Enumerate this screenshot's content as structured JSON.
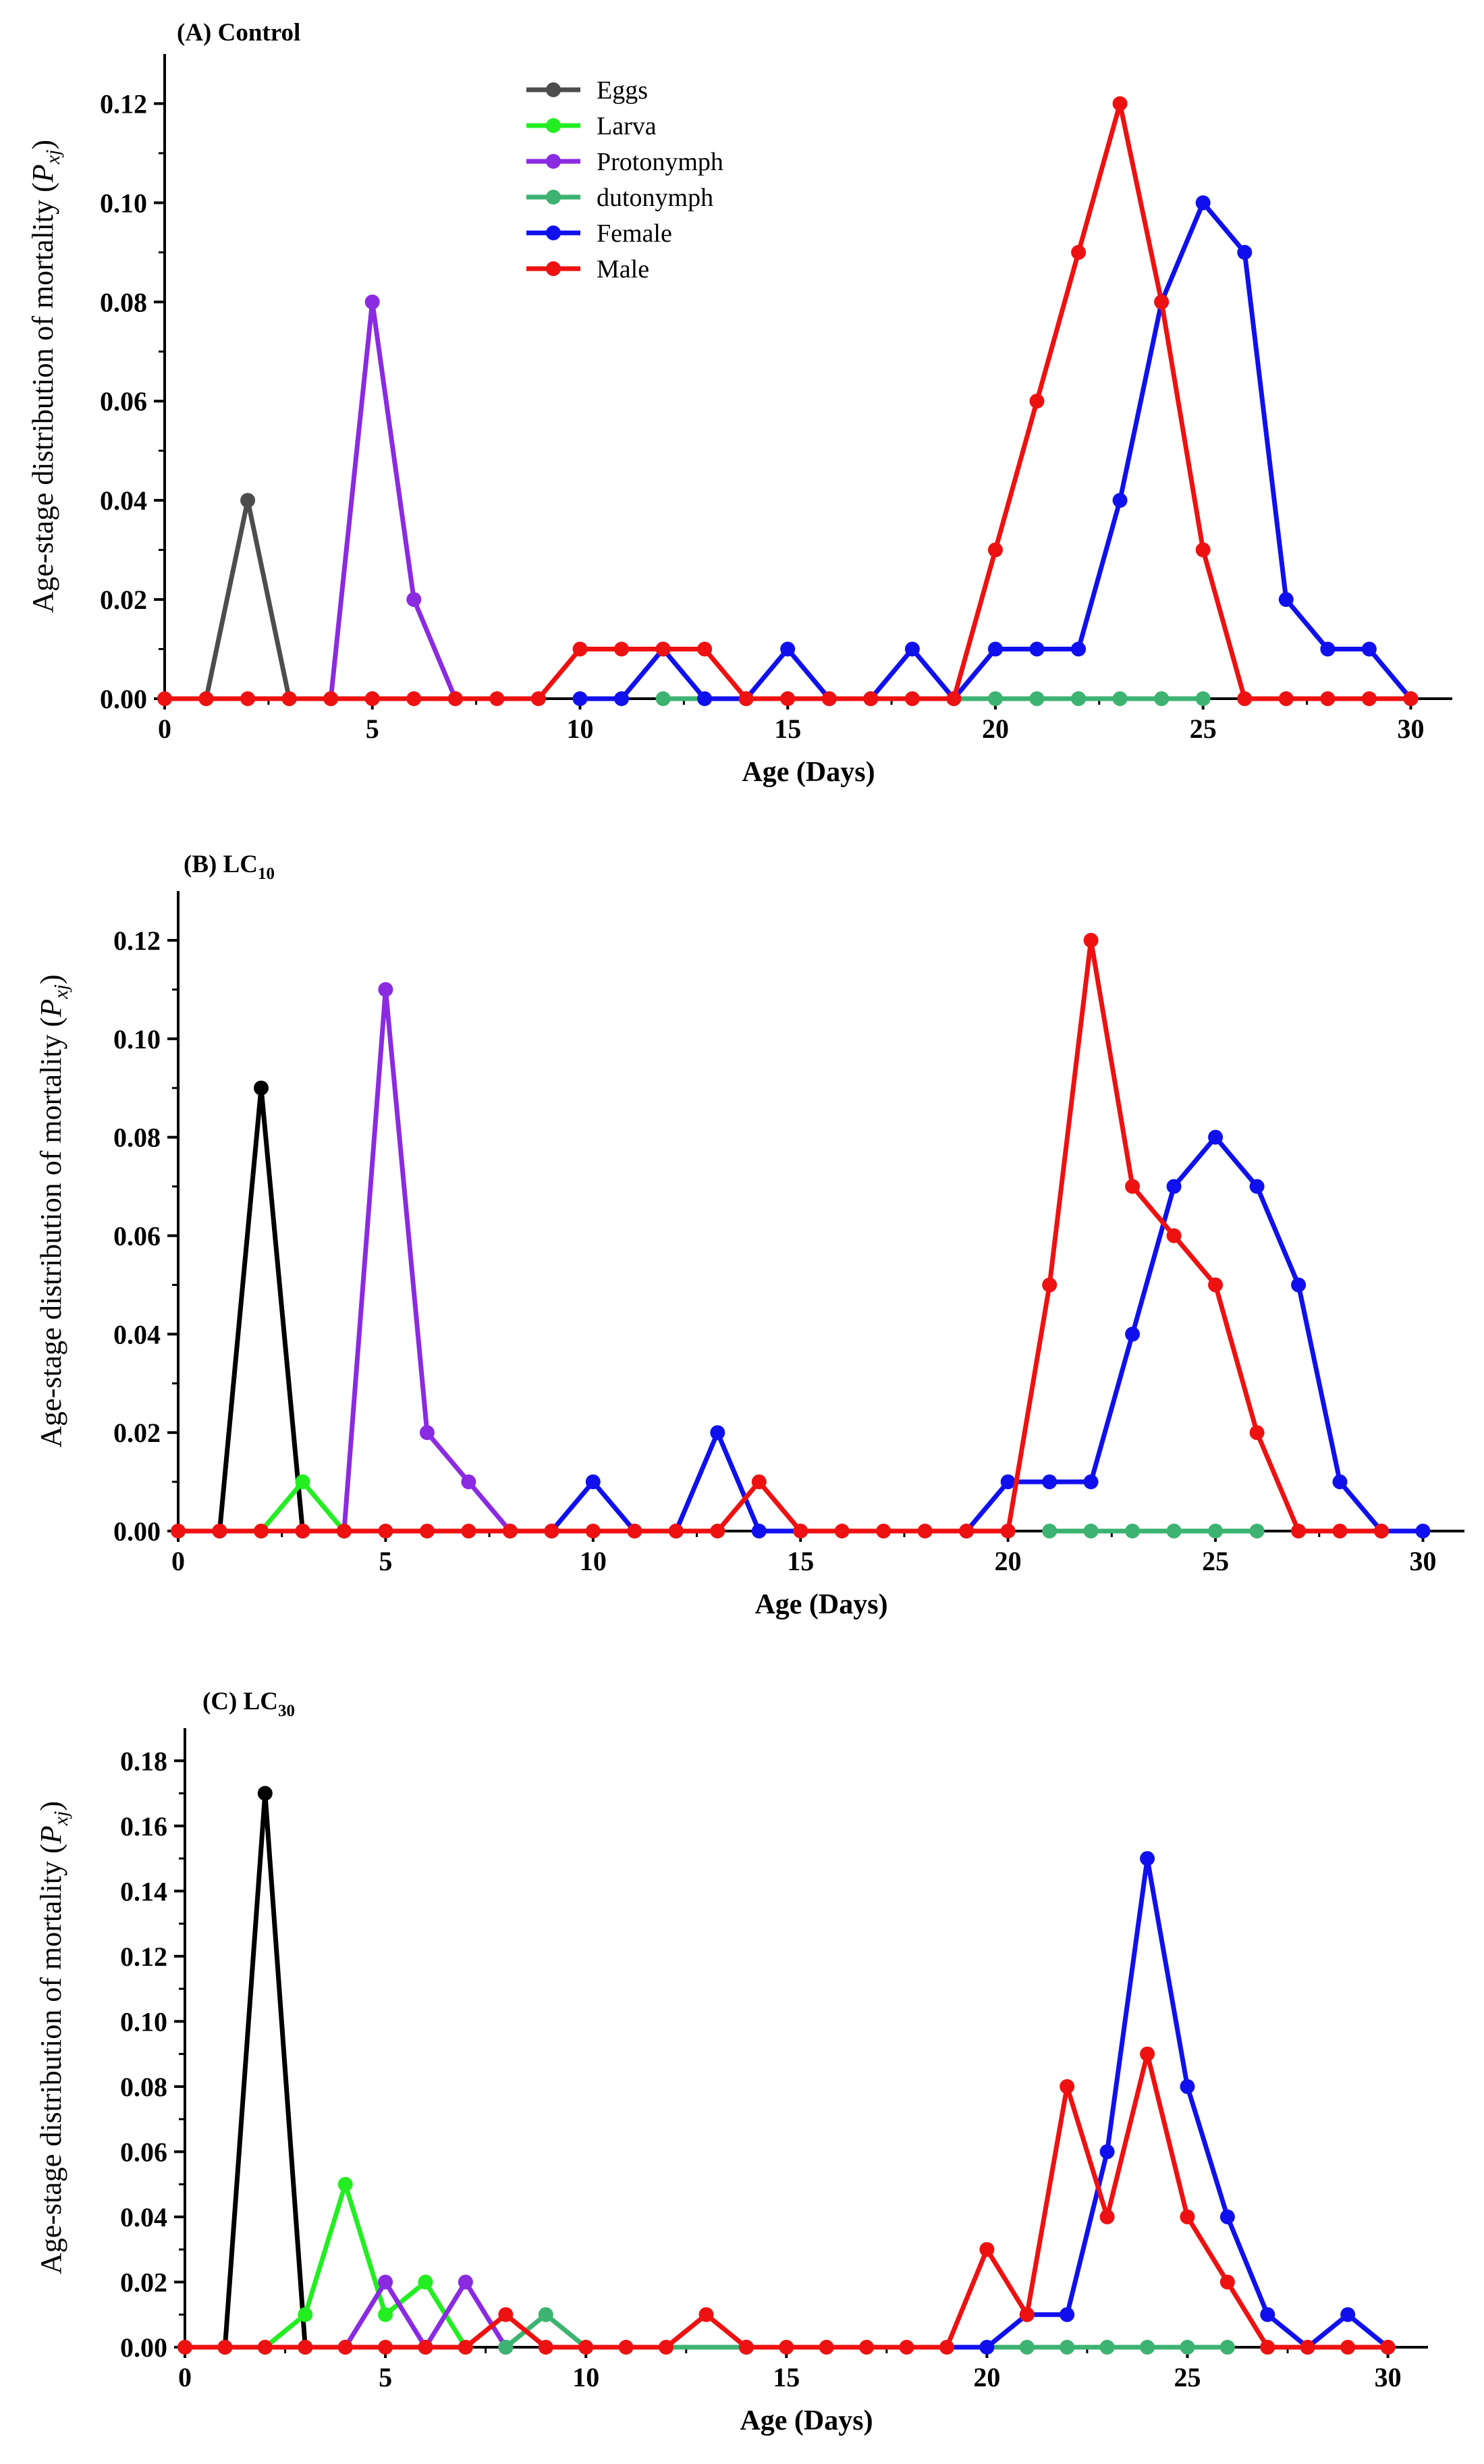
{
  "chart_data": [
    {
      "type": "line",
      "title": "(A) Control",
      "title_main": "(A) Control",
      "title_sub": "",
      "xlabel": "Age (Days)",
      "ylabel_main": "Age-stage distribution of mortality (",
      "ylabel_var": "P",
      "ylabel_subscript": "xj",
      "ylabel_end": ")",
      "xlim": [
        0,
        31
      ],
      "ylim": [
        0,
        0.13
      ],
      "xticks": [
        0,
        5,
        10,
        15,
        20,
        25,
        30
      ],
      "yticks": [
        0,
        0.02,
        0.04,
        0.06,
        0.08,
        0.1,
        0.12
      ],
      "ytick_labels": [
        "0.00",
        "0.02",
        "0.04",
        "0.06",
        "0.08",
        "0.10",
        "0.12"
      ],
      "legend": "top-left",
      "legend_entries": [
        "Eggs",
        "Larva",
        "Protonymph",
        "dutonymph",
        "Female",
        "Male"
      ],
      "series": [
        {
          "name": "Eggs",
          "color": "#4d4d4d",
          "x": [
            1,
            2,
            3
          ],
          "y": [
            0,
            0.04,
            0
          ]
        },
        {
          "name": "Larva",
          "color": "#22ee22",
          "x": [
            3
          ],
          "y": [
            0
          ]
        },
        {
          "name": "Protonymph",
          "color": "#8a2be2",
          "x": [
            4,
            5,
            6,
            7
          ],
          "y": [
            0,
            0.08,
            0.02,
            0
          ]
        },
        {
          "name": "dutonymph",
          "color": "#3cb371",
          "x": [
            12,
            20,
            21,
            22,
            23,
            24,
            25
          ],
          "y": [
            0,
            0,
            0,
            0,
            0,
            0,
            0
          ]
        },
        {
          "name": "Female",
          "color": "#1010ee",
          "x": [
            10,
            11,
            12,
            13,
            14,
            15,
            16,
            17,
            18,
            19,
            20,
            21,
            22,
            23,
            24,
            25,
            26,
            27,
            28,
            29,
            30
          ],
          "y": [
            0,
            0,
            0.01,
            0,
            0,
            0.01,
            0,
            0,
            0.01,
            0,
            0.01,
            0.01,
            0.01,
            0.04,
            0.08,
            0.1,
            0.09,
            0.02,
            0.01,
            0.01,
            0
          ]
        },
        {
          "name": "Male",
          "color": "#ee1111",
          "x": [
            0,
            1,
            2,
            3,
            4,
            5,
            6,
            7,
            8,
            9,
            10,
            11,
            12,
            13,
            14,
            15,
            16,
            17,
            18,
            19,
            20,
            21,
            22,
            23,
            24,
            25,
            26,
            27,
            28,
            29,
            30
          ],
          "y": [
            0,
            0,
            0,
            0,
            0,
            0,
            0,
            0,
            0,
            0,
            0.01,
            0.01,
            0.01,
            0.01,
            0,
            0,
            0,
            0,
            0,
            0,
            0.03,
            0.06,
            0.09,
            0.12,
            0.08,
            0.03,
            0,
            0,
            0,
            0,
            0
          ]
        }
      ]
    },
    {
      "type": "line",
      "title": "(B) LC10",
      "title_main": "(B) LC",
      "title_sub": "10",
      "xlabel": "Age (Days)",
      "ylabel_main": "Age-stage distribution of mortality (",
      "ylabel_var": "P",
      "ylabel_subscript": "xj",
      "ylabel_end": ")",
      "xlim": [
        0,
        31
      ],
      "ylim": [
        0,
        0.13
      ],
      "xticks": [
        0,
        5,
        10,
        15,
        20,
        25,
        30
      ],
      "yticks": [
        0,
        0.02,
        0.04,
        0.06,
        0.08,
        0.1,
        0.12
      ],
      "ytick_labels": [
        "0.00",
        "0.02",
        "0.04",
        "0.06",
        "0.08",
        "0.10",
        "0.12"
      ],
      "series": [
        {
          "name": "Eggs",
          "color": "#000000",
          "x": [
            1,
            2,
            3
          ],
          "y": [
            0,
            0.09,
            0
          ]
        },
        {
          "name": "Larva",
          "color": "#22ee22",
          "x": [
            2,
            3,
            4
          ],
          "y": [
            0,
            0.01,
            0
          ]
        },
        {
          "name": "Protonymph",
          "color": "#8a2be2",
          "x": [
            4,
            5,
            6,
            7,
            8
          ],
          "y": [
            0,
            0.11,
            0.02,
            0.01,
            0
          ]
        },
        {
          "name": "dutonymph",
          "color": "#3cb371",
          "x": [
            21,
            22,
            23,
            24,
            25,
            26
          ],
          "y": [
            0,
            0,
            0,
            0,
            0,
            0
          ]
        },
        {
          "name": "Female",
          "color": "#1010ee",
          "x": [
            9,
            10,
            11,
            12,
            13,
            14,
            19,
            20,
            21,
            22,
            23,
            24,
            25,
            26,
            27,
            28,
            29,
            30
          ],
          "y": [
            0,
            0.01,
            0,
            0,
            0.02,
            0,
            0,
            0.01,
            0.01,
            0.01,
            0.04,
            0.07,
            0.08,
            0.07,
            0.05,
            0.01,
            0,
            0
          ]
        },
        {
          "name": "Male",
          "color": "#ee1111",
          "x": [
            0,
            1,
            2,
            3,
            4,
            5,
            6,
            7,
            8,
            9,
            10,
            11,
            12,
            13,
            14,
            15,
            16,
            17,
            18,
            19,
            20,
            21,
            22,
            23,
            24,
            25,
            26,
            27,
            28,
            29
          ],
          "y": [
            0,
            0,
            0,
            0,
            0,
            0,
            0,
            0,
            0,
            0,
            0,
            0,
            0,
            0,
            0.01,
            0,
            0,
            0,
            0,
            0,
            0,
            0.05,
            0.12,
            0.07,
            0.06,
            0.05,
            0.02,
            0,
            0,
            0
          ]
        }
      ]
    },
    {
      "type": "line",
      "title": "(C) LC30",
      "title_main": "(C) LC",
      "title_sub": "30",
      "xlabel": "Age (Days)",
      "ylabel_main": "Age-stage distribution of mortality (",
      "ylabel_var": "P",
      "ylabel_subscript": "xj",
      "ylabel_end": ")",
      "xlim": [
        0,
        31
      ],
      "ylim": [
        0,
        0.19
      ],
      "xticks": [
        0,
        5,
        10,
        15,
        20,
        25,
        30
      ],
      "yticks": [
        0,
        0.02,
        0.04,
        0.06,
        0.08,
        0.1,
        0.12,
        0.14,
        0.16,
        0.18
      ],
      "ytick_labels": [
        "0.00",
        "0.02",
        "0.04",
        "0.06",
        "0.08",
        "0.10",
        "0.12",
        "0.14",
        "0.16",
        "0.18"
      ],
      "series": [
        {
          "name": "Eggs",
          "color": "#000000",
          "x": [
            1,
            2,
            3
          ],
          "y": [
            0,
            0.17,
            0
          ]
        },
        {
          "name": "Larva",
          "color": "#22ee22",
          "x": [
            2,
            3,
            4,
            5,
            6,
            7
          ],
          "y": [
            0,
            0.01,
            0.05,
            0.01,
            0.02,
            0
          ]
        },
        {
          "name": "Protonymph",
          "color": "#8a2be2",
          "x": [
            4,
            5,
            6,
            7,
            8
          ],
          "y": [
            0,
            0.02,
            0,
            0.02,
            0
          ]
        },
        {
          "name": "dutonymph",
          "color": "#3cb371",
          "x": [
            8,
            9,
            10,
            21,
            22,
            23,
            24,
            25,
            26
          ],
          "y": [
            0,
            0.01,
            0,
            0,
            0,
            0,
            0,
            0,
            0
          ]
        },
        {
          "name": "Female",
          "color": "#1010ee",
          "x": [
            14,
            20,
            21,
            22,
            23,
            24,
            25,
            26,
            27,
            28,
            29,
            30
          ],
          "y": [
            0,
            0,
            0.01,
            0.01,
            0.06,
            0.15,
            0.08,
            0.04,
            0.01,
            0,
            0.01,
            0
          ]
        },
        {
          "name": "Male",
          "color": "#ee1111",
          "x": [
            0,
            1,
            2,
            3,
            4,
            5,
            6,
            7,
            8,
            9,
            10,
            11,
            12,
            13,
            14,
            15,
            16,
            17,
            18,
            19,
            20,
            21,
            22,
            23,
            24,
            25,
            26,
            27,
            28,
            29,
            30
          ],
          "y": [
            0,
            0,
            0,
            0,
            0,
            0,
            0,
            0,
            0.01,
            0,
            0,
            0,
            0,
            0.01,
            0,
            0,
            0,
            0,
            0,
            0,
            0.03,
            0.01,
            0.08,
            0.04,
            0.09,
            0.04,
            0.02,
            0,
            0,
            0,
            0
          ]
        }
      ]
    }
  ]
}
